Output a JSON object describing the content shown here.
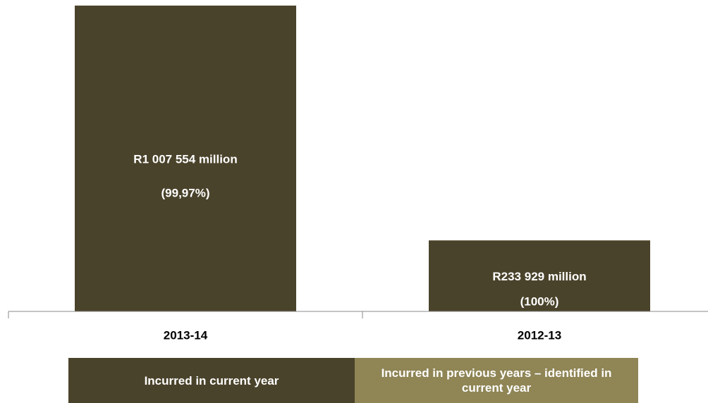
{
  "chart_data": {
    "type": "bar",
    "categories": [
      "2013-14",
      "2012-13"
    ],
    "values": [
      1007.554,
      233.929
    ],
    "value_labels": [
      "R1 007 554 million",
      "R233 929 million"
    ],
    "percent_labels": [
      "(99,97%)",
      "(100%)"
    ],
    "ylim": [
      0,
      1012
    ],
    "grid": false,
    "legend_position": "bottom",
    "legend": [
      {
        "label": "Incurred in current year",
        "color": "#4a432b"
      },
      {
        "label": "Incurred in previous years – identified in current year",
        "color": "#8f8555"
      }
    ],
    "bar_color": "#4a432b",
    "axis_color": "#888888"
  }
}
